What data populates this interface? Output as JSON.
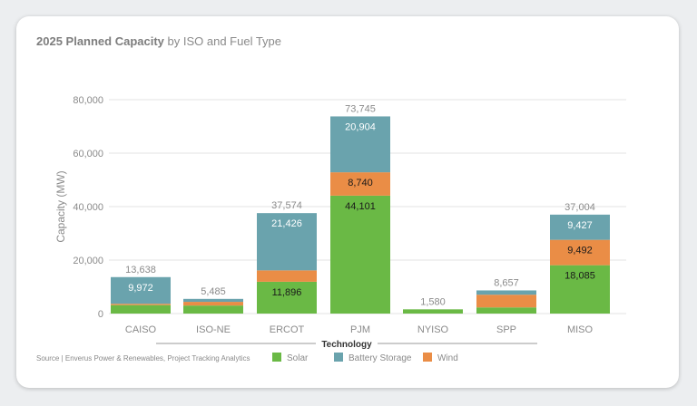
{
  "chart_data": {
    "type": "bar",
    "stacked": true,
    "title_bold": "2025 Planned Capacity",
    "title_rest": " by ISO and Fuel Type",
    "xlabel": "Technology",
    "ylabel": "Capacity (MW)",
    "ylim": [
      0,
      80000
    ],
    "yticks": [
      "0",
      "20,000",
      "40,000",
      "60,000",
      "80,000"
    ],
    "grid": true,
    "legend_position": "bottom",
    "categories": [
      "CAISO",
      "ISO-NE",
      "ERCOT",
      "PJM",
      "NYISO",
      "SPP",
      "MISO"
    ],
    "series": [
      {
        "name": "Solar",
        "color": "#6ab945",
        "values": [
          3166,
          3000,
          11896,
          44101,
          1580,
          2300,
          18085
        ]
      },
      {
        "name": "Wind",
        "color": "#ea8d46",
        "values": [
          500,
          1385,
          4252,
          8740,
          0,
          4757,
          9492
        ]
      },
      {
        "name": "Battery Storage",
        "color": "#6aa3ad",
        "values": [
          9972,
          1100,
          21426,
          20904,
          0,
          1600,
          9427
        ]
      }
    ],
    "segment_labels": [
      {
        "category": "CAISO",
        "series": "Battery Storage",
        "text": "9,972"
      },
      {
        "category": "ERCOT",
        "series": "Solar",
        "text": "11,896"
      },
      {
        "category": "ERCOT",
        "series": "Battery Storage",
        "text": "21,426"
      },
      {
        "category": "PJM",
        "series": "Solar",
        "text": "44,101"
      },
      {
        "category": "PJM",
        "series": "Wind",
        "text": "8,740"
      },
      {
        "category": "PJM",
        "series": "Battery Storage",
        "text": "20,904"
      },
      {
        "category": "MISO",
        "series": "Solar",
        "text": "18,085"
      },
      {
        "category": "MISO",
        "series": "Wind",
        "text": "9,492"
      },
      {
        "category": "MISO",
        "series": "Battery Storage",
        "text": "9,427"
      }
    ],
    "totals": [
      "13,638",
      "5,485",
      "37,574",
      "73,745",
      "1,580",
      "8,657",
      "37,004"
    ],
    "legend": [
      {
        "name": "Solar",
        "color": "#6ab945"
      },
      {
        "name": "Battery Storage",
        "color": "#6aa3ad"
      },
      {
        "name": "Wind",
        "color": "#ea8d46"
      }
    ]
  },
  "source": "Source | Enverus Power & Renewables, Project Tracking Analytics"
}
